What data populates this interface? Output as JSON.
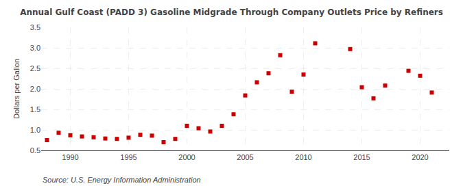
{
  "chart_data": {
    "type": "scatter",
    "title": "Annual Gulf Coast (PADD 3) Gasoline Midgrade Through Company Outlets Price by Refiners",
    "ylabel": "Dollars per Gallon",
    "annotations": [
      "Source: U.S. Energy Information Administration"
    ],
    "x": [
      1988,
      1989,
      1990,
      1991,
      1992,
      1993,
      1994,
      1995,
      1996,
      1997,
      1998,
      1999,
      2000,
      2001,
      2002,
      2003,
      2004,
      2005,
      2006,
      2007,
      2008,
      2009,
      2010,
      2011,
      2014,
      2015,
      2016,
      2017,
      2019,
      2020,
      2021
    ],
    "values": [
      0.75,
      0.93,
      0.87,
      0.84,
      0.82,
      0.79,
      0.78,
      0.81,
      0.88,
      0.86,
      0.7,
      0.78,
      1.1,
      1.04,
      0.96,
      1.1,
      1.38,
      1.84,
      2.16,
      2.38,
      2.82,
      1.93,
      2.35,
      3.11,
      2.97,
      2.04,
      1.77,
      2.08,
      2.44,
      2.32,
      1.91
    ],
    "color": "#cc0000",
    "marker": "square",
    "xlim": [
      1987.5,
      2022.5
    ],
    "ylim": [
      0.5,
      3.5
    ],
    "xticks": [
      1990,
      1995,
      2000,
      2005,
      2010,
      2015,
      2020
    ],
    "yticks": [
      0.5,
      {
        "value": 1.0,
        "label": "1.0"
      },
      1.5,
      {
        "value": 2.0,
        "label": "2.0"
      },
      2.5,
      {
        "value": 3.0,
        "label": "3.0"
      },
      3.5
    ],
    "grid": true
  }
}
